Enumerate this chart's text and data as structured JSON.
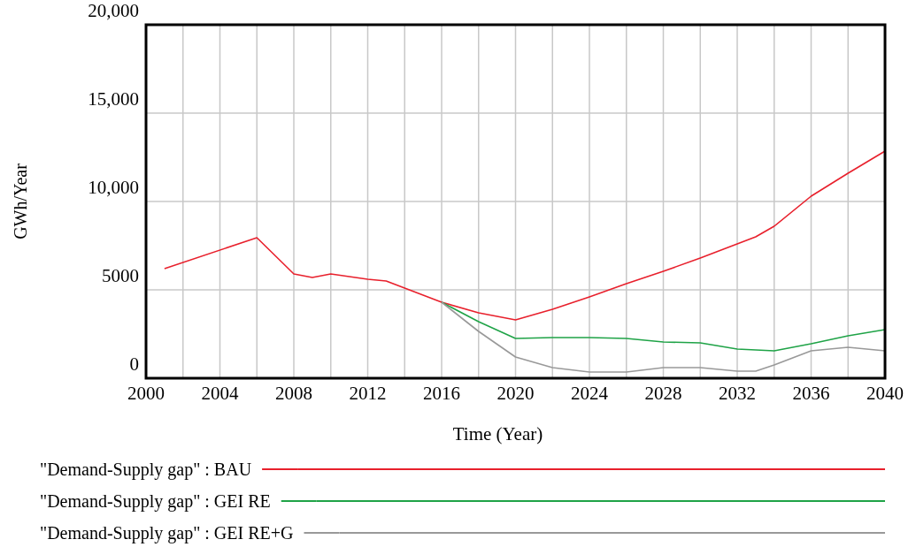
{
  "chart_data": {
    "type": "line",
    "xlabel": "Time (Year)",
    "ylabel": "GWh/Year",
    "xlim": [
      2000,
      2040
    ],
    "xticks": [
      2000,
      2004,
      2008,
      2012,
      2016,
      2020,
      2024,
      2028,
      2032,
      2036,
      2040
    ],
    "ylim": [
      0,
      20000
    ],
    "yticks": [
      {
        "value": 0,
        "label": "0"
      },
      {
        "value": 5000,
        "label": "5000"
      },
      {
        "value": 10000,
        "label": "10,000"
      },
      {
        "value": 15000,
        "label": "15,000"
      },
      {
        "value": 20000,
        "label": "20,000"
      }
    ],
    "x": [
      2001,
      2006,
      2008,
      2009,
      2010,
      2012,
      2013,
      2014,
      2016,
      2018,
      2020,
      2022,
      2024,
      2026,
      2028,
      2030,
      2032,
      2033,
      2034,
      2036,
      2038,
      2040
    ],
    "grid": true,
    "legend": "bottom",
    "line_style": "solid",
    "marker": "none",
    "series": [
      {
        "name": "\"Demand-Supply gap\" : BAU",
        "color": "#e8202c",
        "values": [
          6200,
          7950,
          5900,
          5700,
          5900,
          5600,
          5500,
          5100,
          4300,
          3700,
          3300,
          3900,
          4600,
          5350,
          6050,
          6800,
          7600,
          8000,
          8600,
          10300,
          11600,
          12850
        ]
      },
      {
        "name": "\"Demand-Supply gap\" : GEI RE",
        "color": "#1fa347",
        "x": [
          2016,
          2018,
          2020,
          2022,
          2024,
          2026,
          2028,
          2030,
          2032,
          2034,
          2036,
          2038,
          2040
        ],
        "values": [
          4300,
          3200,
          2250,
          2300,
          2300,
          2250,
          2050,
          2000,
          1650,
          1550,
          1950,
          2400,
          2750
        ]
      },
      {
        "name": "\"Demand-Supply gap\" : GEI RE+G",
        "color": "#999999",
        "x": [
          2016,
          2018,
          2020,
          2022,
          2024,
          2026,
          2028,
          2030,
          2032,
          2033,
          2034,
          2036,
          2038,
          2040
        ],
        "values": [
          4300,
          2650,
          1200,
          600,
          350,
          350,
          600,
          600,
          400,
          400,
          750,
          1550,
          1750,
          1550
        ]
      }
    ]
  }
}
